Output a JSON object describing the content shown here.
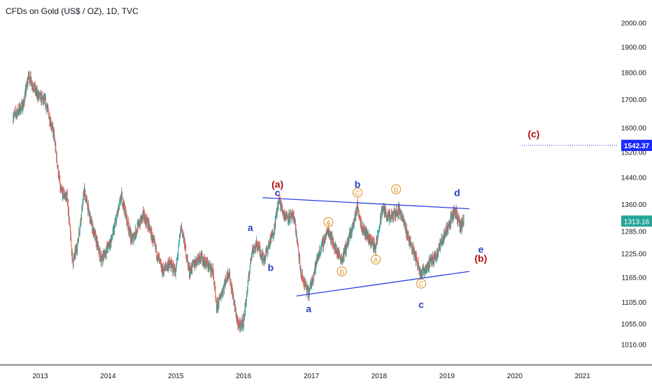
{
  "header": {
    "title": "CFDs on Gold (US$ / OZ), 1D, TVC"
  },
  "colors": {
    "up": "#26a69a",
    "down": "#ef5350",
    "trendline": "#2741e0",
    "wave_blue": "#2741c8",
    "wave_red": "#b01010",
    "wave_orange": "#e39b3a",
    "target_badge": "#1e2bff",
    "price_badge": "#26a69a"
  },
  "chart_data": {
    "type": "candlestick",
    "symbol": "CFDs on Gold (US$ / OZ)",
    "interval": "1D",
    "source": "TVC",
    "x_ticks": [
      "2013",
      "2014",
      "2015",
      "2016",
      "2017",
      "2018",
      "2019",
      "2020",
      "2021"
    ],
    "y_ticks": [
      "2000.00",
      "1900.00",
      "1800.00",
      "1700.00",
      "1600.00",
      "1520.00",
      "1440.00",
      "1360.00",
      "1285.00",
      "1225.00",
      "1165.00",
      "1105.00",
      "1055.00",
      "1010.00"
    ],
    "y_scale": "log",
    "price_path": [
      [
        2012.6,
        1640
      ],
      [
        2012.75,
        1680
      ],
      [
        2012.83,
        1790
      ],
      [
        2012.95,
        1720
      ],
      [
        2013.08,
        1690
      ],
      [
        2013.2,
        1580
      ],
      [
        2013.3,
        1400
      ],
      [
        2013.4,
        1380
      ],
      [
        2013.48,
        1200
      ],
      [
        2013.55,
        1250
      ],
      [
        2013.65,
        1400
      ],
      [
        2013.75,
        1310
      ],
      [
        2013.9,
        1210
      ],
      [
        2014.05,
        1260
      ],
      [
        2014.2,
        1385
      ],
      [
        2014.35,
        1260
      ],
      [
        2014.52,
        1330
      ],
      [
        2014.6,
        1300
      ],
      [
        2014.8,
        1180
      ],
      [
        2014.9,
        1200
      ],
      [
        2015.0,
        1180
      ],
      [
        2015.08,
        1300
      ],
      [
        2015.2,
        1180
      ],
      [
        2015.35,
        1220
      ],
      [
        2015.55,
        1180
      ],
      [
        2015.6,
        1090
      ],
      [
        2015.78,
        1180
      ],
      [
        2015.92,
        1050
      ],
      [
        2016.0,
        1060
      ],
      [
        2016.12,
        1230
      ],
      [
        2016.2,
        1250
      ],
      [
        2016.3,
        1210
      ],
      [
        2016.45,
        1290
      ],
      [
        2016.52,
        1375
      ],
      [
        2016.6,
        1330
      ],
      [
        2016.75,
        1320
      ],
      [
        2016.85,
        1170
      ],
      [
        2016.96,
        1125
      ],
      [
        2017.1,
        1220
      ],
      [
        2017.25,
        1290
      ],
      [
        2017.35,
        1240
      ],
      [
        2017.45,
        1210
      ],
      [
        2017.6,
        1290
      ],
      [
        2017.68,
        1355
      ],
      [
        2017.75,
        1295
      ],
      [
        2017.95,
        1240
      ],
      [
        2018.05,
        1350
      ],
      [
        2018.15,
        1320
      ],
      [
        2018.3,
        1345
      ],
      [
        2018.45,
        1260
      ],
      [
        2018.62,
        1175
      ],
      [
        2018.72,
        1195
      ],
      [
        2018.85,
        1225
      ],
      [
        2018.95,
        1270
      ],
      [
        2019.12,
        1345
      ],
      [
        2019.2,
        1295
      ],
      [
        2019.25,
        1315
      ]
    ],
    "last_price": "1313.16",
    "target_price": "1542.37",
    "target_label": "(c)",
    "trendlines": [
      {
        "name": "upper",
        "from": [
          2016.28,
          1380
        ],
        "to": [
          2019.33,
          1348
        ]
      },
      {
        "name": "lower",
        "from": [
          2016.78,
          1120
        ],
        "to": [
          2019.33,
          1180
        ]
      }
    ],
    "annotations": [
      {
        "text": "(a)",
        "style": "red",
        "at": [
          2016.5,
          1420
        ]
      },
      {
        "text": "c",
        "style": "blue",
        "at": [
          2016.5,
          1395
        ]
      },
      {
        "text": "a",
        "style": "blue",
        "at": [
          2016.1,
          1295
        ]
      },
      {
        "text": "b",
        "style": "blue",
        "at": [
          2016.4,
          1190
        ]
      },
      {
        "text": "a",
        "style": "blue",
        "at": [
          2016.96,
          1090
        ]
      },
      {
        "text": "b",
        "style": "blue",
        "at": [
          2017.68,
          1420
        ]
      },
      {
        "text": "d",
        "style": "blue",
        "at": [
          2019.15,
          1395
        ]
      },
      {
        "text": "c",
        "style": "blue",
        "at": [
          2018.62,
          1100
        ]
      },
      {
        "text": "e",
        "style": "blue",
        "at": [
          2019.5,
          1237
        ]
      },
      {
        "text": "(b)",
        "style": "red",
        "at": [
          2019.5,
          1213
        ]
      },
      {
        "text": "(c)",
        "style": "red",
        "at": [
          2020.28,
          1580
        ]
      },
      {
        "text": "A",
        "style": "orange-circle",
        "at": [
          2017.25,
          1310
        ]
      },
      {
        "text": "B",
        "style": "orange-circle",
        "at": [
          2017.45,
          1180
        ]
      },
      {
        "text": "C",
        "style": "orange-circle",
        "at": [
          2017.68,
          1395
        ]
      },
      {
        "text": "A",
        "style": "orange-circle",
        "at": [
          2017.95,
          1210
        ]
      },
      {
        "text": "B",
        "style": "orange-circle",
        "at": [
          2018.25,
          1405
        ]
      },
      {
        "text": "C",
        "style": "orange-circle",
        "at": [
          2018.62,
          1150
        ]
      }
    ]
  }
}
